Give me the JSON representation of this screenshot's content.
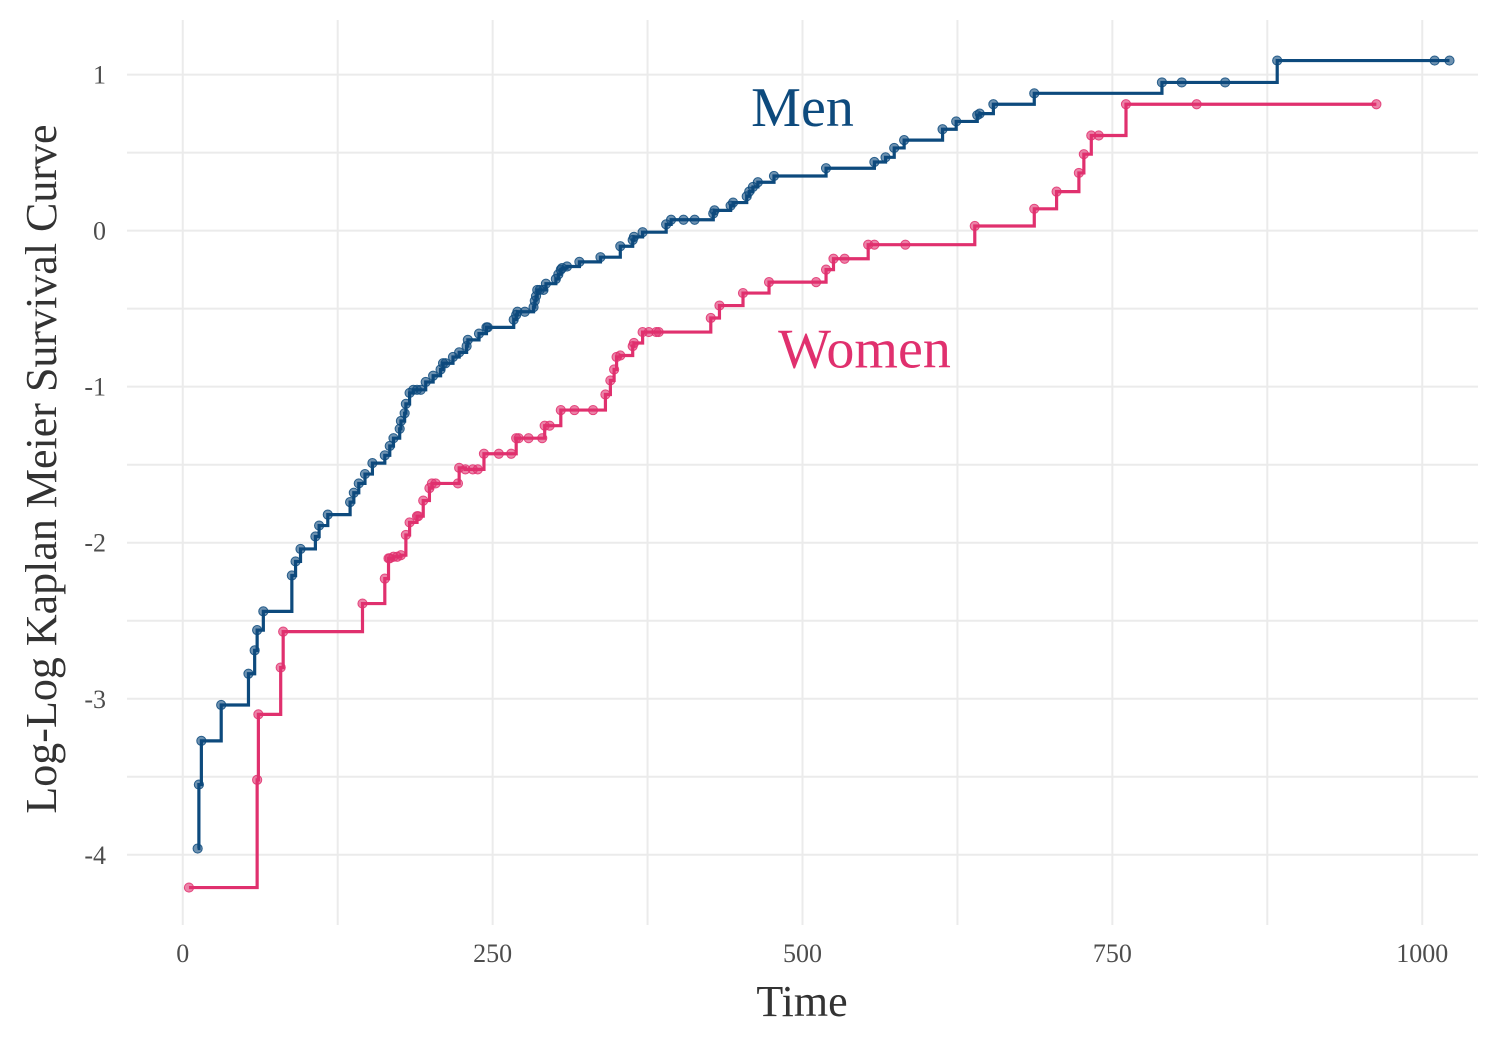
{
  "chart_data": {
    "type": "line",
    "xlabel": "Time",
    "ylabel": "Log-Log Kaplan Meier Survival Curve",
    "xlim": [
      -45,
      1045
    ],
    "ylim": [
      -4.45,
      1.35
    ],
    "x_ticks": [
      0,
      250,
      500,
      750,
      1000
    ],
    "x_tick_labels": [
      "0",
      "250",
      "500",
      "750",
      "1000"
    ],
    "y_ticks": [
      -4,
      -3,
      -2,
      -1,
      0,
      1
    ],
    "y_tick_labels": [
      "-4",
      "-3",
      "-2",
      "-1",
      "0",
      "1"
    ],
    "grid": true,
    "legend": "none",
    "step": "post",
    "series": [
      {
        "name": "Men",
        "color": "#0d4a7d",
        "label_x": 500,
        "label_y": 0.8,
        "points": [
          [
            12,
            -3.96
          ],
          [
            13,
            -3.55
          ],
          [
            15,
            -3.27
          ],
          [
            31,
            -3.04
          ],
          [
            53,
            -2.84
          ],
          [
            58,
            -2.69
          ],
          [
            60,
            -2.56
          ],
          [
            65,
            -2.44
          ],
          [
            88,
            -2.21
          ],
          [
            91,
            -2.12
          ],
          [
            95,
            -2.04
          ],
          [
            107,
            -1.96
          ],
          [
            110,
            -1.89
          ],
          [
            117,
            -1.82
          ],
          [
            135,
            -1.74
          ],
          [
            138,
            -1.68
          ],
          [
            142,
            -1.62
          ],
          [
            147,
            -1.56
          ],
          [
            153,
            -1.49
          ],
          [
            163,
            -1.44
          ],
          [
            167,
            -1.38
          ],
          [
            170,
            -1.33
          ],
          [
            175,
            -1.27
          ],
          [
            176,
            -1.22
          ],
          [
            179,
            -1.17
          ],
          [
            180,
            -1.11
          ],
          [
            183,
            -1.04
          ],
          [
            186,
            -1.02
          ],
          [
            189,
            -1.02
          ],
          [
            192,
            -1.02
          ],
          [
            196,
            -0.97
          ],
          [
            202,
            -0.93
          ],
          [
            208,
            -0.89
          ],
          [
            210,
            -0.85
          ],
          [
            212,
            -0.85
          ],
          [
            218,
            -0.81
          ],
          [
            223,
            -0.78
          ],
          [
            229,
            -0.74
          ],
          [
            230,
            -0.7
          ],
          [
            239,
            -0.66
          ],
          [
            245,
            -0.62
          ],
          [
            246,
            -0.62
          ],
          [
            267,
            -0.57
          ],
          [
            269,
            -0.54
          ],
          [
            270,
            -0.52
          ],
          [
            276,
            -0.52
          ],
          [
            283,
            -0.49
          ],
          [
            284,
            -0.45
          ],
          [
            285,
            -0.42
          ],
          [
            286,
            -0.38
          ],
          [
            288,
            -0.38
          ],
          [
            291,
            -0.38
          ],
          [
            293,
            -0.34
          ],
          [
            301,
            -0.31
          ],
          [
            303,
            -0.28
          ],
          [
            305,
            -0.25
          ],
          [
            306,
            -0.24
          ],
          [
            310,
            -0.23
          ],
          [
            320,
            -0.2
          ],
          [
            337,
            -0.17
          ],
          [
            353,
            -0.1
          ],
          [
            363,
            -0.06
          ],
          [
            364,
            -0.04
          ],
          [
            371,
            -0.01
          ],
          [
            390,
            0.04
          ],
          [
            394,
            0.07
          ],
          [
            404,
            0.07
          ],
          [
            413,
            0.07
          ],
          [
            428,
            0.11
          ],
          [
            429,
            0.13
          ],
          [
            442,
            0.16
          ],
          [
            444,
            0.18
          ],
          [
            455,
            0.22
          ],
          [
            457,
            0.25
          ],
          [
            460,
            0.28
          ],
          [
            464,
            0.31
          ],
          [
            477,
            0.35
          ],
          [
            519,
            0.4
          ],
          [
            558,
            0.44
          ],
          [
            567,
            0.47
          ],
          [
            574,
            0.53
          ],
          [
            582,
            0.58
          ],
          [
            613,
            0.65
          ],
          [
            624,
            0.7
          ],
          [
            641,
            0.74
          ],
          [
            643,
            0.75
          ],
          [
            654,
            0.81
          ],
          [
            687,
            0.88
          ],
          [
            790,
            0.95
          ],
          [
            806,
            0.95
          ],
          [
            841,
            0.95
          ],
          [
            883,
            1.09
          ],
          [
            1010,
            1.09
          ],
          [
            1022,
            1.09
          ]
        ]
      },
      {
        "name": "Women",
        "color": "#e0306e",
        "label_x": 550,
        "label_y": -0.75,
        "points": [
          [
            5,
            -4.21
          ],
          [
            60,
            -3.52
          ],
          [
            61,
            -3.1
          ],
          [
            79,
            -2.8
          ],
          [
            81,
            -2.57
          ],
          [
            145,
            -2.39
          ],
          [
            163,
            -2.23
          ],
          [
            166,
            -2.1
          ],
          [
            167,
            -2.1
          ],
          [
            170,
            -2.09
          ],
          [
            173,
            -2.09
          ],
          [
            176,
            -2.08
          ],
          [
            180,
            -1.95
          ],
          [
            183,
            -1.87
          ],
          [
            189,
            -1.83
          ],
          [
            190,
            -1.83
          ],
          [
            194,
            -1.73
          ],
          [
            199,
            -1.65
          ],
          [
            201,
            -1.62
          ],
          [
            204,
            -1.62
          ],
          [
            222,
            -1.62
          ],
          [
            223,
            -1.52
          ],
          [
            228,
            -1.53
          ],
          [
            234,
            -1.53
          ],
          [
            238,
            -1.53
          ],
          [
            243,
            -1.43
          ],
          [
            255,
            -1.43
          ],
          [
            265,
            -1.43
          ],
          [
            269,
            -1.33
          ],
          [
            271,
            -1.33
          ],
          [
            279,
            -1.33
          ],
          [
            290,
            -1.33
          ],
          [
            292,
            -1.25
          ],
          [
            296,
            -1.25
          ],
          [
            305,
            -1.15
          ],
          [
            316,
            -1.15
          ],
          [
            331,
            -1.15
          ],
          [
            341,
            -1.05
          ],
          [
            345,
            -0.96
          ],
          [
            348,
            -0.89
          ],
          [
            350,
            -0.81
          ],
          [
            353,
            -0.8
          ],
          [
            363,
            -0.74
          ],
          [
            364,
            -0.72
          ],
          [
            371,
            -0.65
          ],
          [
            376,
            -0.65
          ],
          [
            382,
            -0.65
          ],
          [
            384,
            -0.65
          ],
          [
            426,
            -0.56
          ],
          [
            433,
            -0.48
          ],
          [
            452,
            -0.4
          ],
          [
            473,
            -0.33
          ],
          [
            511,
            -0.33
          ],
          [
            519,
            -0.25
          ],
          [
            525,
            -0.18
          ],
          [
            534,
            -0.18
          ],
          [
            553,
            -0.09
          ],
          [
            558,
            -0.09
          ],
          [
            583,
            -0.09
          ],
          [
            639,
            0.03
          ],
          [
            687,
            0.14
          ],
          [
            705,
            0.25
          ],
          [
            723,
            0.37
          ],
          [
            727,
            0.49
          ],
          [
            733,
            0.61
          ],
          [
            739,
            0.61
          ],
          [
            761,
            0.81
          ],
          [
            818,
            0.81
          ],
          [
            963,
            0.81
          ]
        ]
      }
    ]
  }
}
